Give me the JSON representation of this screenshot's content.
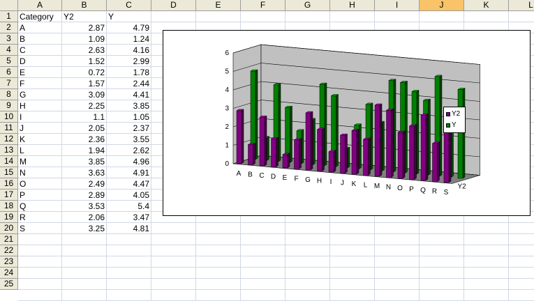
{
  "spreadsheet": {
    "columns": [
      "A",
      "B",
      "C",
      "D",
      "E",
      "F",
      "G",
      "H",
      "I",
      "J",
      "K",
      "L"
    ],
    "selected_column": "J",
    "row_numbers": [
      "1",
      "2",
      "3",
      "4",
      "5",
      "6",
      "7",
      "8",
      "9",
      "10",
      "11",
      "12",
      "13",
      "14",
      "15",
      "16",
      "17",
      "18",
      "19",
      "20",
      "21",
      "22",
      "23",
      "24",
      "25"
    ],
    "header_row": [
      "Category",
      "Y2",
      "Y"
    ],
    "rows": [
      [
        "A",
        "2.87",
        "4.79"
      ],
      [
        "B",
        "1.09",
        "1.24"
      ],
      [
        "C",
        "2.63",
        "4.16"
      ],
      [
        "D",
        "1.52",
        "2.99"
      ],
      [
        "E",
        "0.72",
        "1.78"
      ],
      [
        "F",
        "1.57",
        "2.44"
      ],
      [
        "G",
        "3.09",
        "4.41"
      ],
      [
        "H",
        "2.25",
        "3.85"
      ],
      [
        "I",
        "1.1",
        "1.05"
      ],
      [
        "J",
        "2.05",
        "2.37"
      ],
      [
        "K",
        "2.36",
        "3.55"
      ],
      [
        "L",
        "1.94",
        "2.62"
      ],
      [
        "M",
        "3.85",
        "4.96"
      ],
      [
        "N",
        "3.63",
        "4.91"
      ],
      [
        "O",
        "2.49",
        "4.47"
      ],
      [
        "P",
        "2.89",
        "4.05"
      ],
      [
        "Q",
        "3.53",
        "5.4"
      ],
      [
        "R",
        "2.06",
        "3.47"
      ],
      [
        "S",
        "3.25",
        "4.81"
      ]
    ]
  },
  "colors": {
    "header_bg": "#ece9d8",
    "selected_header_bg": "#f9c36a",
    "gridline": "#d0d7e5",
    "series_y2": "#800080",
    "series_y": "#008000",
    "wall": "#c0c0c0",
    "floor": "#808080"
  },
  "chart_data": {
    "type": "bar",
    "subtype": "3d-column",
    "categories": [
      "A",
      "B",
      "C",
      "D",
      "E",
      "F",
      "G",
      "H",
      "I",
      "J",
      "K",
      "L",
      "M",
      "N",
      "O",
      "P",
      "Q",
      "R",
      "S"
    ],
    "series": [
      {
        "name": "Y2",
        "values": [
          2.87,
          1.09,
          2.63,
          1.52,
          0.72,
          1.57,
          3.09,
          2.25,
          1.1,
          2.05,
          2.36,
          1.94,
          3.85,
          3.63,
          2.49,
          2.89,
          3.53,
          2.06,
          3.25
        ]
      },
      {
        "name": "Y",
        "values": [
          4.79,
          1.24,
          4.16,
          2.99,
          1.78,
          2.44,
          4.41,
          3.85,
          1.05,
          2.37,
          3.55,
          2.62,
          4.96,
          4.91,
          4.47,
          4.05,
          5.4,
          3.47,
          4.81
        ]
      }
    ],
    "series_axis_label": "Y2",
    "ylim": [
      0,
      6
    ],
    "yticks": [
      "0",
      "1",
      "2",
      "3",
      "4",
      "5",
      "6"
    ],
    "grid": true,
    "legend_position": "right"
  }
}
